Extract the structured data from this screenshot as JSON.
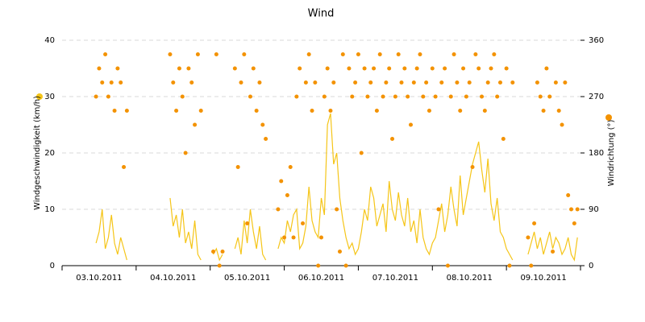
{
  "chart_data": {
    "type": "wind",
    "title": "Wind",
    "categories": [
      "03.10.2011",
      "04.10.2011",
      "05.10.2011",
      "06.10.2011",
      "07.10.2011",
      "08.10.2011",
      "09.10.2011"
    ],
    "xlim": [
      0,
      168
    ],
    "x": [
      0,
      1,
      2,
      3,
      4,
      5,
      6,
      7,
      8,
      9,
      10,
      11,
      12,
      13,
      14,
      15,
      16,
      17,
      18,
      19,
      20,
      21,
      22,
      23,
      24,
      25,
      26,
      27,
      28,
      29,
      30,
      31,
      32,
      33,
      34,
      35,
      36,
      37,
      38,
      39,
      40,
      41,
      42,
      43,
      44,
      45,
      46,
      47,
      48,
      49,
      50,
      51,
      52,
      53,
      54,
      55,
      56,
      57,
      58,
      59,
      60,
      61,
      62,
      63,
      64,
      65,
      66,
      67,
      68,
      69,
      70,
      71,
      72,
      73,
      74,
      75,
      76,
      77,
      78,
      79,
      80,
      81,
      82,
      83,
      84,
      85,
      86,
      87,
      88,
      89,
      90,
      91,
      92,
      93,
      94,
      95,
      96,
      97,
      98,
      99,
      100,
      101,
      102,
      103,
      104,
      105,
      106,
      107,
      108,
      109,
      110,
      111,
      112,
      113,
      114,
      115,
      116,
      117,
      118,
      119,
      120,
      121,
      122,
      123,
      124,
      125,
      126,
      127,
      128,
      129,
      130,
      131,
      132,
      133,
      134,
      135,
      136,
      137,
      138,
      139,
      140,
      141,
      142,
      143,
      144,
      145,
      146,
      147,
      148,
      149,
      150,
      151,
      152,
      153,
      154,
      155,
      156,
      157,
      158,
      159,
      160,
      161,
      162,
      163,
      164,
      165,
      166,
      167
    ],
    "ylim": [
      0,
      40
    ],
    "yticks": [
      0,
      10,
      20,
      30,
      40
    ],
    "y2lim": [
      0,
      360
    ],
    "y2ticks": [
      0,
      90,
      180,
      270,
      360
    ],
    "grid": true,
    "series": [
      {
        "name": "Windgeschwindigkeit (km/h)",
        "color": "#f5c518",
        "values": [
          null,
          null,
          null,
          null,
          null,
          null,
          null,
          null,
          null,
          null,
          null,
          4,
          6,
          10,
          3,
          5,
          9,
          4,
          2,
          5,
          3,
          1,
          null,
          null,
          null,
          null,
          null,
          null,
          null,
          null,
          null,
          null,
          null,
          null,
          null,
          12,
          7,
          9,
          5,
          10,
          4,
          6,
          3,
          8,
          2,
          1,
          null,
          null,
          null,
          2,
          3,
          1,
          2,
          null,
          null,
          null,
          3,
          5,
          2,
          8,
          4,
          10,
          6,
          3,
          7,
          2,
          1,
          null,
          null,
          null,
          3,
          5,
          4,
          8,
          6,
          9,
          10,
          3,
          4,
          7,
          14,
          8,
          6,
          5,
          12,
          9,
          25,
          27,
          18,
          20,
          12,
          8,
          5,
          3,
          4,
          2,
          3,
          6,
          10,
          8,
          14,
          12,
          7,
          9,
          11,
          6,
          15,
          10,
          8,
          13,
          9,
          7,
          12,
          6,
          8,
          4,
          10,
          5,
          3,
          2,
          4,
          5,
          8,
          11,
          6,
          9,
          14,
          10,
          7,
          16,
          9,
          12,
          15,
          18,
          20,
          22,
          17,
          13,
          19,
          11,
          8,
          12,
          6,
          5,
          3,
          2,
          1,
          null,
          null,
          null,
          null,
          2,
          4,
          6,
          3,
          5,
          2,
          4,
          6,
          3,
          5,
          4,
          2,
          3,
          5,
          2,
          1,
          5
        ]
      },
      {
        "name": "Windrichtung (°)",
        "color": "#f39200",
        "axis": "y2",
        "values": [
          null,
          null,
          null,
          null,
          null,
          null,
          null,
          null,
          null,
          null,
          null,
          270,
          315,
          292.5,
          337.5,
          270,
          292.5,
          247.5,
          315,
          292.5,
          157.5,
          247.5,
          null,
          null,
          null,
          null,
          null,
          null,
          null,
          null,
          null,
          null,
          null,
          null,
          null,
          337.5,
          292.5,
          247.5,
          315,
          270,
          180,
          315,
          292.5,
          225,
          337.5,
          247.5,
          null,
          null,
          null,
          22.5,
          337.5,
          0,
          22.5,
          null,
          null,
          null,
          315,
          157.5,
          292.5,
          337.5,
          67.5,
          270,
          315,
          247.5,
          292.5,
          225,
          202.5,
          null,
          null,
          null,
          90,
          135,
          45,
          112.5,
          157.5,
          45,
          270,
          315,
          67.5,
          292.5,
          337.5,
          247.5,
          292.5,
          0,
          45,
          270,
          315,
          247.5,
          292.5,
          90,
          22.5,
          337.5,
          0,
          315,
          270,
          292.5,
          337.5,
          180,
          315,
          270,
          292.5,
          315,
          247.5,
          337.5,
          270,
          292.5,
          315,
          202.5,
          270,
          337.5,
          292.5,
          315,
          270,
          225,
          292.5,
          315,
          337.5,
          270,
          292.5,
          247.5,
          315,
          270,
          90,
          292.5,
          315,
          0,
          270,
          337.5,
          292.5,
          247.5,
          315,
          270,
          292.5,
          157.5,
          337.5,
          315,
          270,
          247.5,
          292.5,
          315,
          337.5,
          270,
          292.5,
          202.5,
          315,
          0,
          292.5,
          null,
          null,
          null,
          null,
          45,
          0,
          67.5,
          292.5,
          270,
          247.5,
          315,
          270,
          22.5,
          292.5,
          247.5,
          225,
          292.5,
          112.5,
          90,
          67.5,
          90
        ]
      }
    ]
  }
}
